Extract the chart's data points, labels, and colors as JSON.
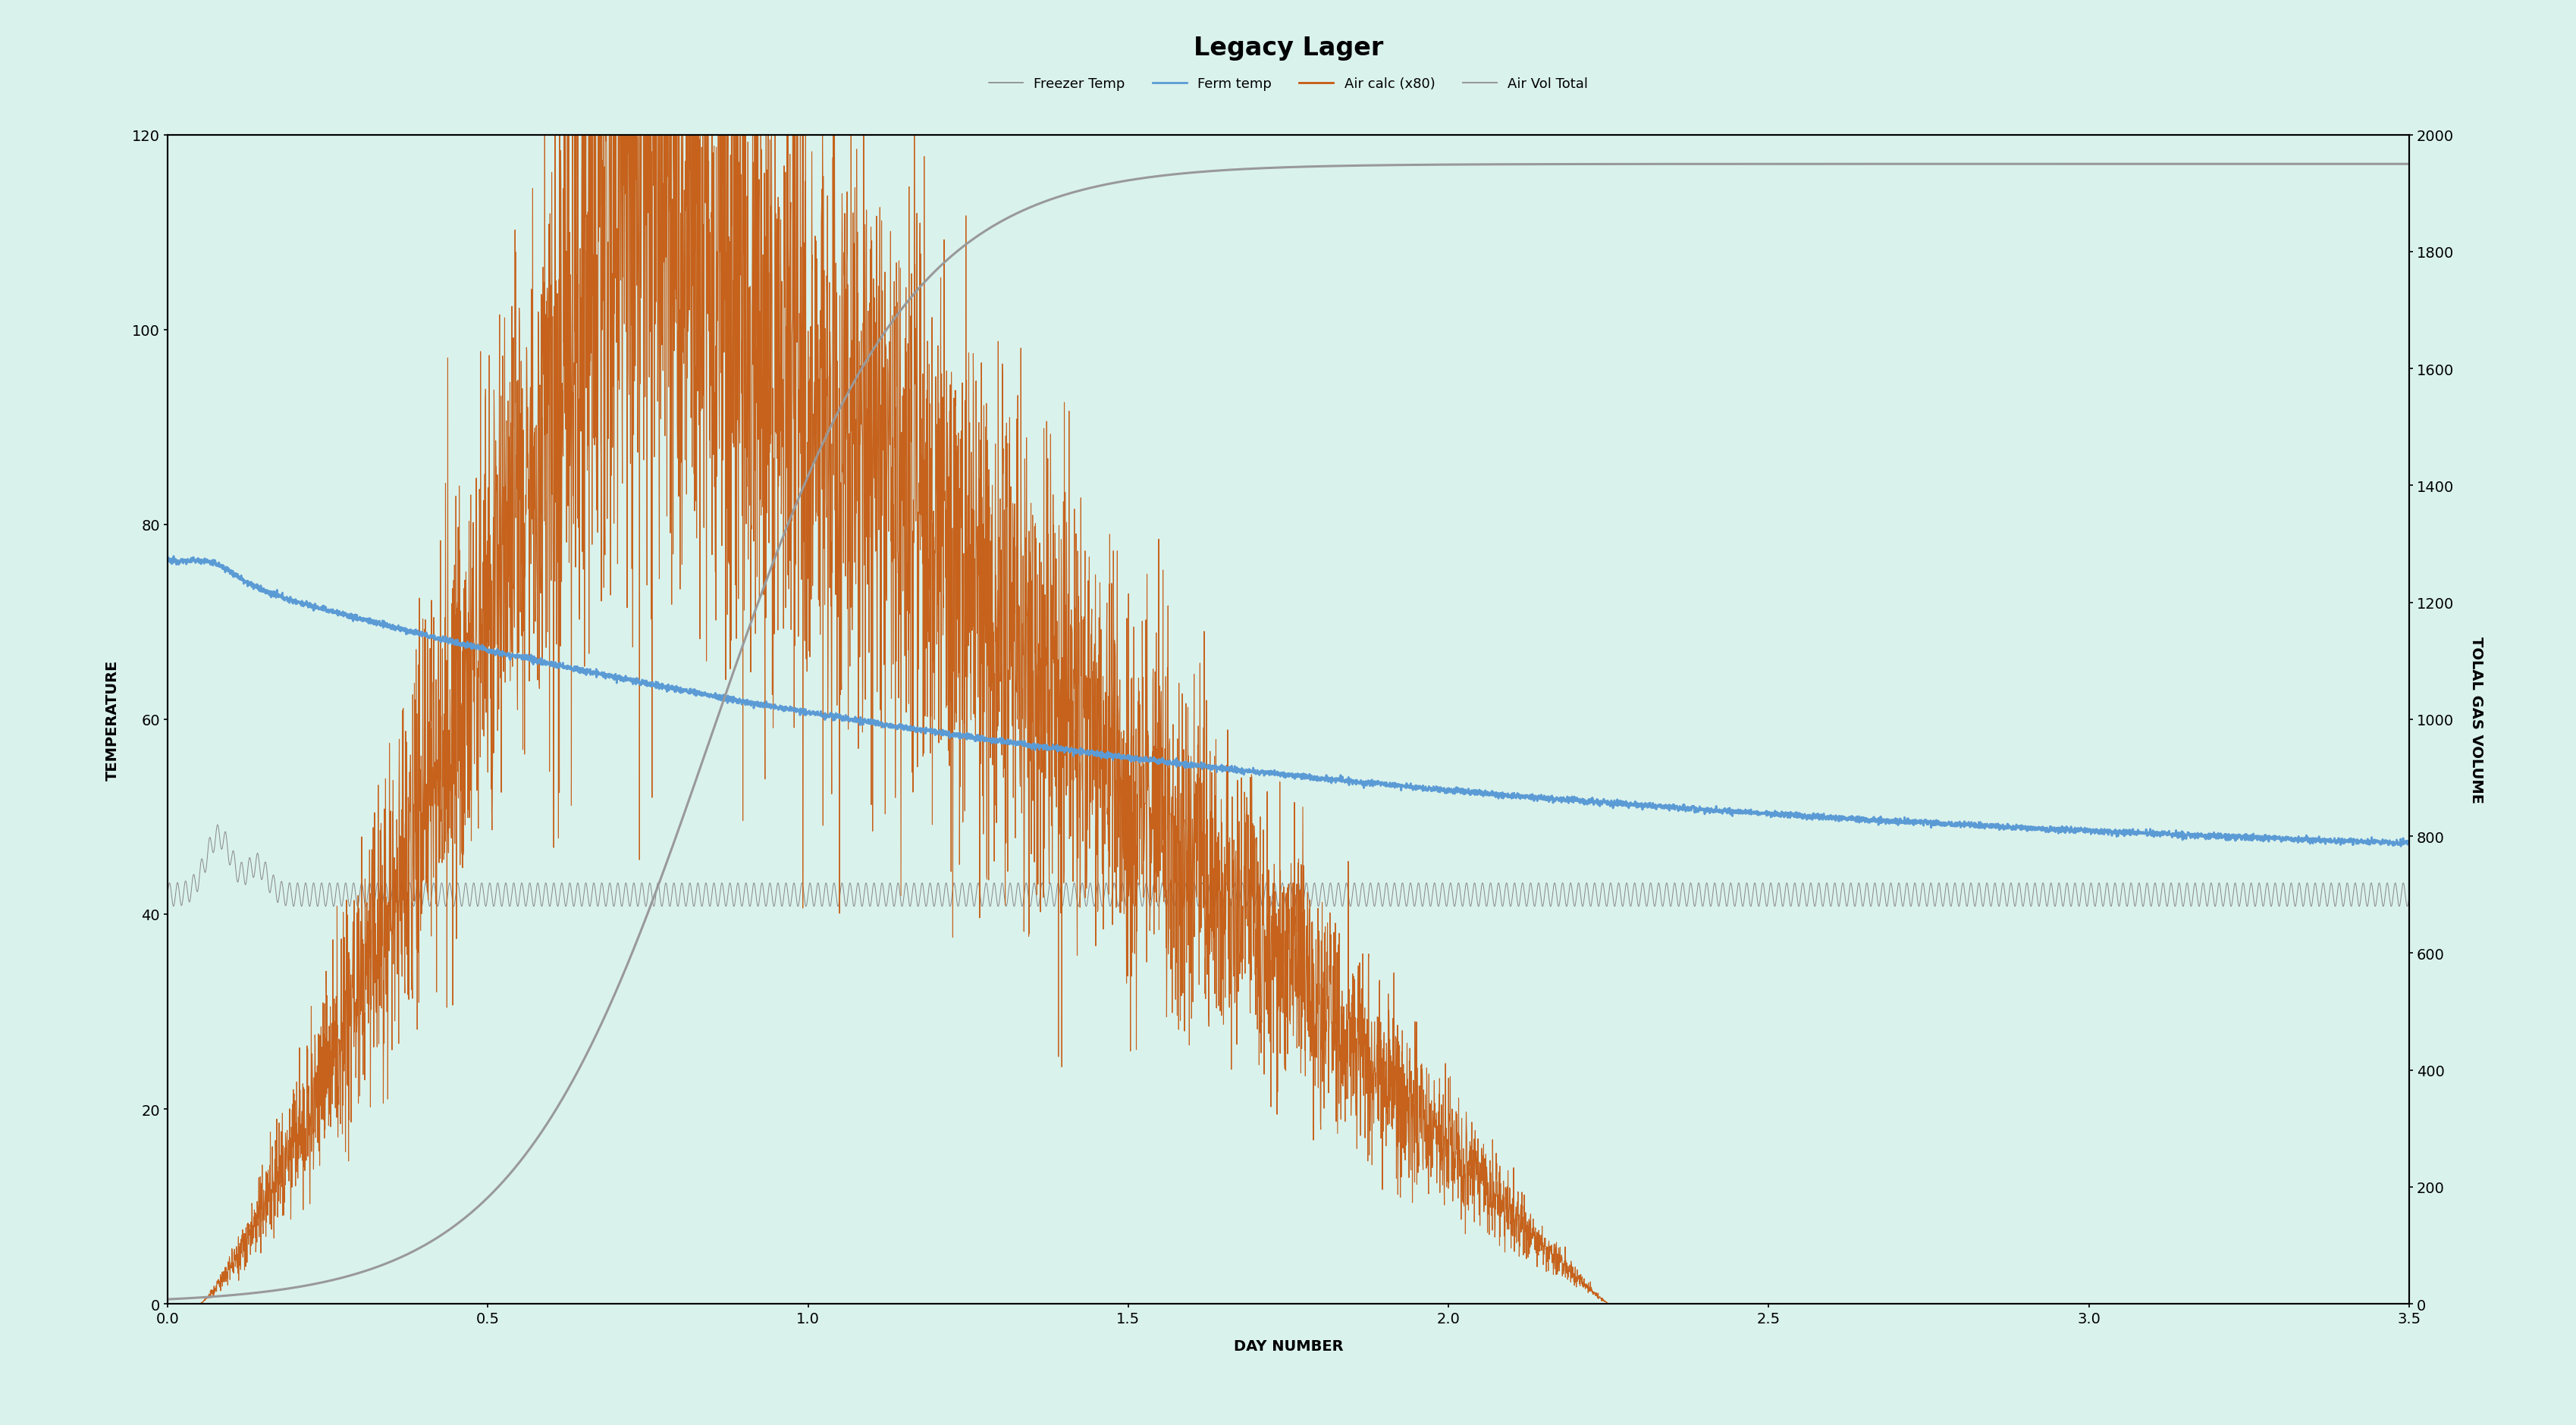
{
  "title": "Legacy Lager",
  "xlabel": "DAY NUMBER",
  "ylabel_left": "TEMPERATURE",
  "ylabel_right": "TOLAL GAS VOLUME",
  "background_color": "#daf2ec",
  "plot_bg_color": "#daf2ec",
  "xlim": [
    0.0,
    3.5
  ],
  "ylim_left": [
    0,
    120
  ],
  "ylim_right": [
    0,
    2000
  ],
  "xticks": [
    0.0,
    0.5,
    1.0,
    1.5,
    2.0,
    2.5,
    3.0,
    3.5
  ],
  "yticks_left": [
    0,
    20,
    40,
    60,
    80,
    100,
    120
  ],
  "yticks_right": [
    0,
    200,
    400,
    600,
    800,
    1000,
    1200,
    1400,
    1600,
    1800,
    2000
  ],
  "legend_labels": [
    "Freezer Temp",
    "Ferm temp",
    "Air calc (x80)",
    "Air Vol Total"
  ],
  "legend_colors": [
    "#888888",
    "#5b9bd5",
    "#c55a11",
    "#999999"
  ],
  "freezer_color": "#888888",
  "ferm_color": "#5b9bd5",
  "air_calc_color": "#c55a11",
  "air_vol_color": "#999999",
  "title_fontsize": 24,
  "label_fontsize": 14,
  "tick_fontsize": 14
}
